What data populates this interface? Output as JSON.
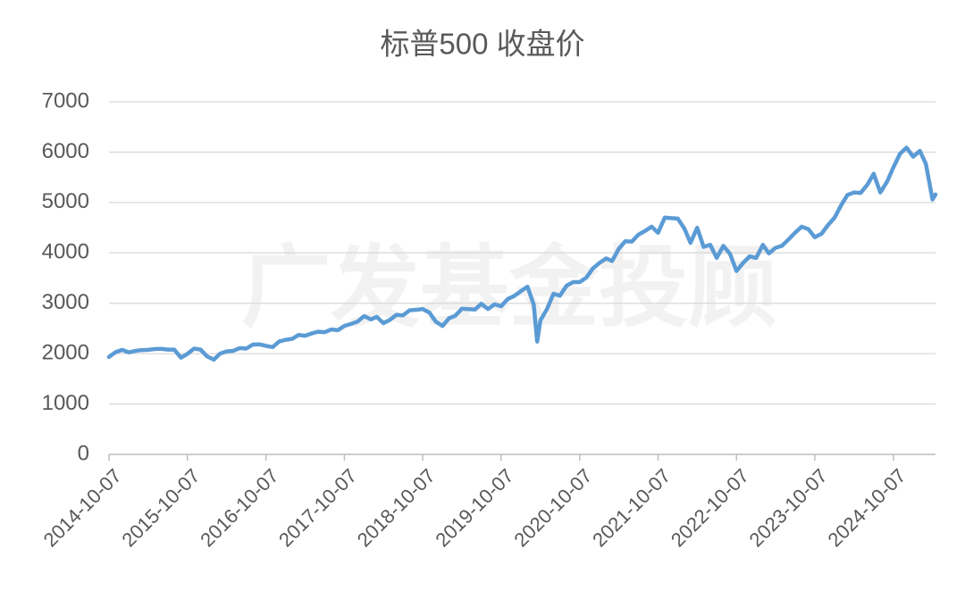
{
  "chart_data": {
    "type": "line",
    "title": "标普500 收盘价",
    "watermark": "广发基金投顾",
    "x": [
      "2014-10-07",
      "2014-11-07",
      "2014-12-07",
      "2015-01-07",
      "2015-02-07",
      "2015-03-07",
      "2015-04-07",
      "2015-05-07",
      "2015-06-07",
      "2015-07-07",
      "2015-08-07",
      "2015-09-07",
      "2015-10-07",
      "2015-11-07",
      "2015-12-07",
      "2016-01-07",
      "2016-02-07",
      "2016-03-07",
      "2016-04-07",
      "2016-05-07",
      "2016-06-07",
      "2016-07-07",
      "2016-08-07",
      "2016-09-07",
      "2016-10-07",
      "2016-11-07",
      "2016-12-07",
      "2017-01-07",
      "2017-02-07",
      "2017-03-07",
      "2017-04-07",
      "2017-05-07",
      "2017-06-07",
      "2017-07-07",
      "2017-08-07",
      "2017-09-07",
      "2017-10-07",
      "2017-11-07",
      "2017-12-07",
      "2018-01-07",
      "2018-02-07",
      "2018-03-07",
      "2018-04-07",
      "2018-05-07",
      "2018-06-07",
      "2018-07-07",
      "2018-08-07",
      "2018-09-07",
      "2018-10-07",
      "2018-11-07",
      "2018-12-07",
      "2019-01-07",
      "2019-02-07",
      "2019-03-07",
      "2019-04-07",
      "2019-05-07",
      "2019-06-07",
      "2019-07-07",
      "2019-08-07",
      "2019-09-07",
      "2019-10-07",
      "2019-11-07",
      "2019-12-07",
      "2020-01-07",
      "2020-02-07",
      "2020-03-07",
      "2020-03-23",
      "2020-04-07",
      "2020-05-07",
      "2020-06-07",
      "2020-07-07",
      "2020-08-07",
      "2020-09-07",
      "2020-10-07",
      "2020-11-07",
      "2020-12-07",
      "2021-01-07",
      "2021-02-07",
      "2021-03-07",
      "2021-04-07",
      "2021-05-07",
      "2021-06-07",
      "2021-07-07",
      "2021-08-07",
      "2021-09-07",
      "2021-10-07",
      "2021-11-07",
      "2021-12-07",
      "2022-01-07",
      "2022-02-07",
      "2022-03-07",
      "2022-04-07",
      "2022-05-07",
      "2022-06-07",
      "2022-07-07",
      "2022-08-07",
      "2022-09-07",
      "2022-10-07",
      "2022-11-07",
      "2022-12-07",
      "2023-01-07",
      "2023-02-07",
      "2023-03-07",
      "2023-04-07",
      "2023-05-07",
      "2023-06-07",
      "2023-07-07",
      "2023-08-07",
      "2023-09-07",
      "2023-10-07",
      "2023-11-07",
      "2023-12-07",
      "2024-01-07",
      "2024-02-07",
      "2024-03-07",
      "2024-04-07",
      "2024-05-07",
      "2024-06-07",
      "2024-07-07",
      "2024-08-07",
      "2024-09-07",
      "2024-10-07",
      "2024-11-07",
      "2024-12-07",
      "2025-01-07",
      "2025-02-07",
      "2025-03-07",
      "2025-04-07",
      "2025-04-21"
    ],
    "series": [
      {
        "color": "#5b9bd5",
        "values": [
          1935,
          2030,
          2075,
          2025,
          2055,
          2070,
          2075,
          2090,
          2095,
          2080,
          2080,
          1920,
          1995,
          2100,
          2080,
          1945,
          1880,
          2000,
          2045,
          2055,
          2110,
          2100,
          2180,
          2185,
          2155,
          2130,
          2240,
          2275,
          2295,
          2370,
          2355,
          2400,
          2435,
          2425,
          2480,
          2465,
          2550,
          2590,
          2635,
          2745,
          2680,
          2730,
          2605,
          2670,
          2770,
          2760,
          2860,
          2870,
          2885,
          2815,
          2635,
          2550,
          2705,
          2750,
          2890,
          2885,
          2875,
          2990,
          2885,
          2980,
          2940,
          3085,
          3145,
          3240,
          3330,
          2970,
          2240,
          2660,
          2880,
          3190,
          3150,
          3350,
          3420,
          3420,
          3510,
          3690,
          3800,
          3890,
          3840,
          4080,
          4230,
          4225,
          4360,
          4435,
          4520,
          4400,
          4700,
          4690,
          4680,
          4480,
          4200,
          4500,
          4120,
          4160,
          3900,
          4140,
          3980,
          3640,
          3800,
          3930,
          3900,
          4160,
          3990,
          4100,
          4140,
          4270,
          4400,
          4520,
          4470,
          4310,
          4380,
          4550,
          4700,
          4950,
          5150,
          5200,
          5190,
          5350,
          5570,
          5200,
          5410,
          5700,
          5970,
          6090,
          5910,
          6025,
          5770,
          5060,
          5160
        ]
      }
    ],
    "xlim": [
      "2014-10-07",
      "2025-04-21"
    ],
    "xticks": [
      "2014-10-07",
      "2015-10-07",
      "2016-10-07",
      "2017-10-07",
      "2018-10-07",
      "2019-10-07",
      "2020-10-07",
      "2021-10-07",
      "2022-10-07",
      "2023-10-07",
      "2024-10-07"
    ],
    "ylim": [
      0,
      7000
    ],
    "yticks": [
      0,
      1000,
      2000,
      3000,
      4000,
      5000,
      6000,
      7000
    ],
    "grid": true
  }
}
